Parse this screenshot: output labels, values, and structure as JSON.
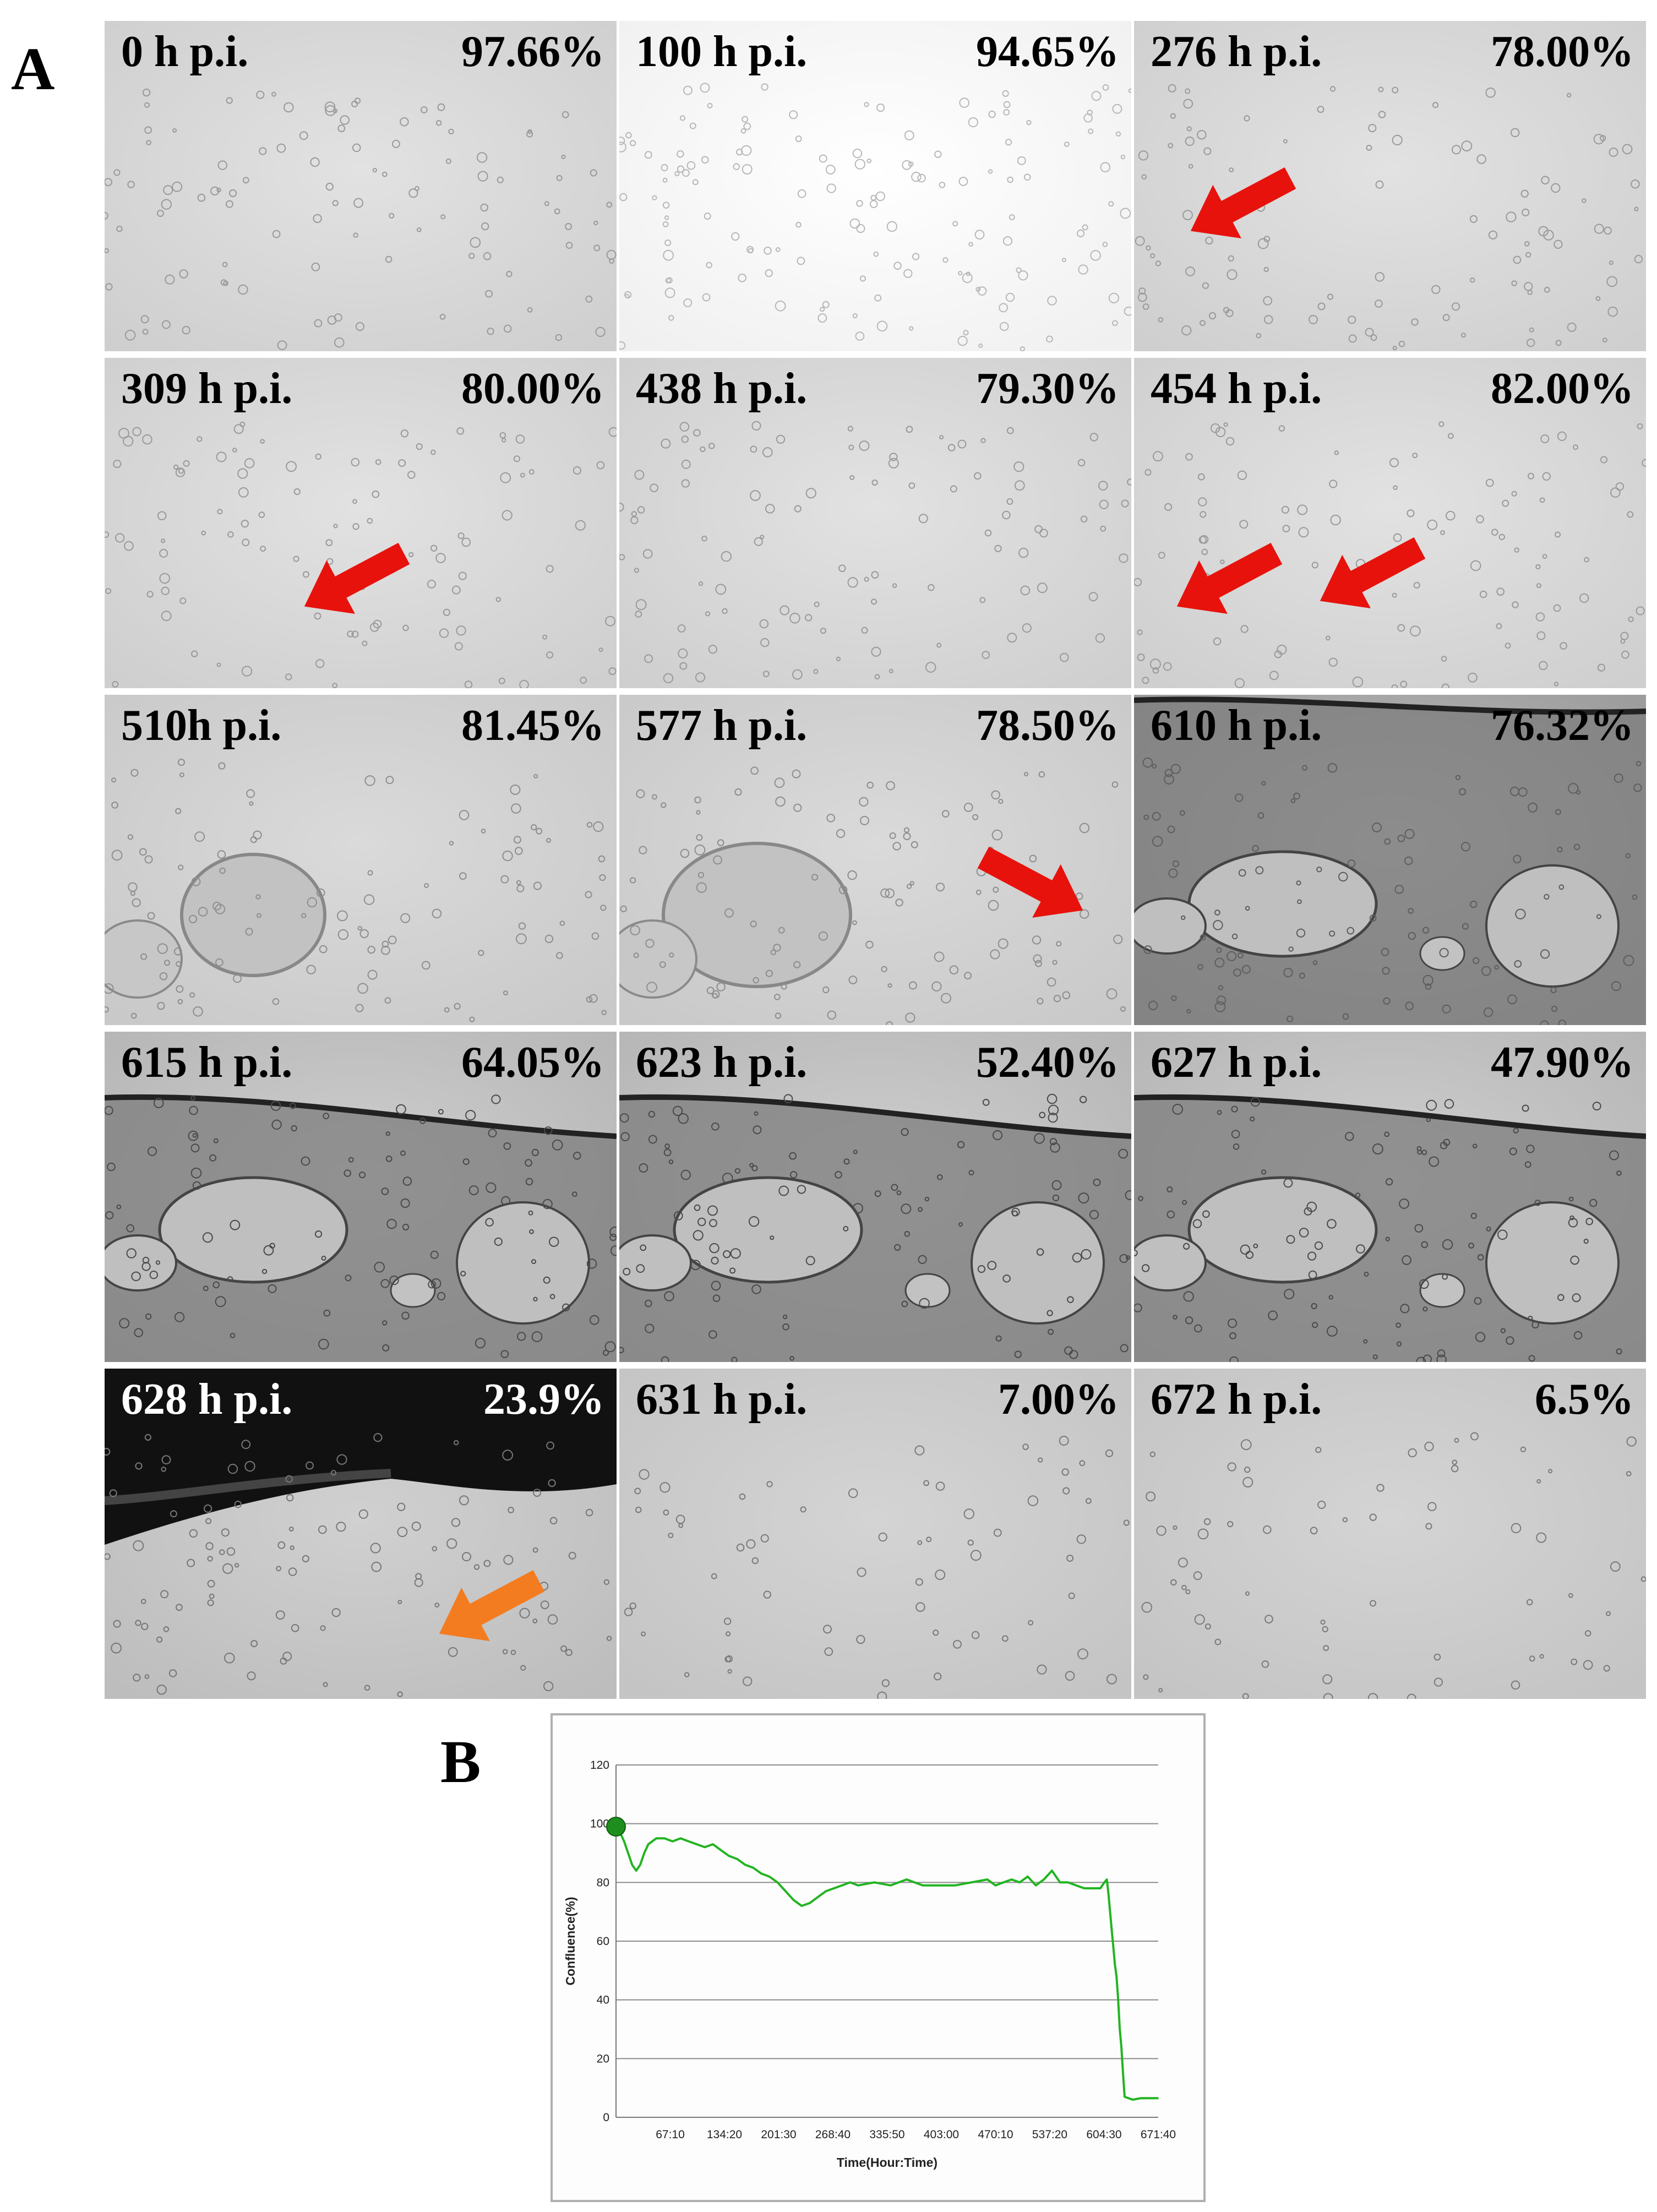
{
  "panel_a": {
    "letter": "A",
    "tiles": [
      {
        "time": "0 h p.i.",
        "percent": "97.66%",
        "style": "light",
        "arrows": []
      },
      {
        "time": "100 h p.i.",
        "percent": "94.65%",
        "style": "bright",
        "arrows": []
      },
      {
        "time": "276 h p.i.",
        "percent": "78.00%",
        "style": "light",
        "arrows": [
          {
            "color": "#e8120c",
            "direction": "down-left"
          }
        ]
      },
      {
        "time": "309 h p.i.",
        "percent": "80.00%",
        "style": "light",
        "arrows": [
          {
            "color": "#e8120c",
            "direction": "down-left"
          }
        ]
      },
      {
        "time": "438 h p.i.",
        "percent": "79.30%",
        "style": "light",
        "arrows": []
      },
      {
        "time": "454 h p.i.",
        "percent": "82.00%",
        "style": "light",
        "arrows": [
          {
            "color": "#e8120c",
            "direction": "down-left"
          },
          {
            "color": "#e8120c",
            "direction": "down-left"
          }
        ]
      },
      {
        "time": "510h p.i.",
        "percent": "81.45%",
        "style": "light-cavity",
        "arrows": []
      },
      {
        "time": "577 h p.i.",
        "percent": "78.50%",
        "style": "light-cavity",
        "arrows": [
          {
            "color": "#e8120c",
            "direction": "down-right"
          }
        ]
      },
      {
        "time": "610 h p.i.",
        "percent": "76.32%",
        "style": "dense",
        "arrows": []
      },
      {
        "time": "615 h p.i.",
        "percent": "64.05%",
        "style": "sheet",
        "arrows": []
      },
      {
        "time": "623 h p.i.",
        "percent": "52.40%",
        "style": "sheet",
        "arrows": []
      },
      {
        "time": "627 h p.i.",
        "percent": "47.90%",
        "style": "sheet",
        "arrows": []
      },
      {
        "time": "628 h p.i.",
        "percent": "23.9%",
        "style": "detach",
        "arrows": [
          {
            "color": "#f47c20",
            "direction": "down-left"
          }
        ]
      },
      {
        "time": "631 h p.i.",
        "percent": "7.00%",
        "style": "sparse",
        "arrows": []
      },
      {
        "time": "672 h p.i.",
        "percent": "6.5%",
        "style": "sparse",
        "arrows": []
      }
    ]
  },
  "panel_b": {
    "letter": "B"
  },
  "chart_data": {
    "type": "line",
    "title": "",
    "xlabel": "Time(Hour:Time)",
    "ylabel": "Confluence(%)",
    "x_tick_labels": [
      "67:10",
      "134:20",
      "201:30",
      "268:40",
      "335:50",
      "403:00",
      "470:10",
      "537:20",
      "604:30",
      "671:40"
    ],
    "x_tick_hours": [
      67.17,
      134.33,
      201.5,
      268.67,
      335.83,
      403.0,
      470.17,
      537.33,
      604.5,
      671.67
    ],
    "y_ticks": [
      0,
      20,
      40,
      60,
      80,
      100,
      120
    ],
    "ylim": [
      0,
      120
    ],
    "xlim": [
      0,
      671.67
    ],
    "grid": "horizontal",
    "line_color": "#22b422",
    "start_marker_color": "#1e8e1e",
    "series": [
      {
        "x": [
          0,
          5,
          10,
          15,
          20,
          25,
          30,
          35,
          40,
          50,
          60,
          70,
          80,
          90,
          100,
          110,
          120,
          130,
          140,
          150,
          160,
          170,
          180,
          190,
          200,
          210,
          220,
          230,
          240,
          250,
          260,
          270,
          280,
          290,
          300,
          320,
          340,
          360,
          380,
          400,
          420,
          440,
          460,
          470,
          480,
          490,
          500,
          510,
          520,
          530,
          540,
          550,
          560,
          570,
          580,
          590,
          600,
          605,
          608,
          610,
          612,
          614,
          616,
          618,
          620,
          622,
          624,
          626,
          628,
          630,
          640,
          650,
          660,
          672
        ],
        "y": [
          99,
          97,
          94,
          90,
          86,
          84,
          86,
          90,
          93,
          95,
          95,
          94,
          95,
          94,
          93,
          92,
          93,
          91,
          89,
          88,
          86,
          85,
          83,
          82,
          80,
          77,
          74,
          72,
          73,
          75,
          77,
          78,
          79,
          80,
          79,
          80,
          79,
          81,
          79,
          79,
          79,
          80,
          81,
          79,
          80,
          81,
          80,
          82,
          79,
          81,
          84,
          80,
          80,
          79,
          78,
          78,
          78,
          80,
          81,
          76,
          70,
          64,
          58,
          52,
          48,
          40,
          30,
          24,
          15,
          7,
          6,
          6.5,
          6.5,
          6.5
        ]
      }
    ]
  }
}
